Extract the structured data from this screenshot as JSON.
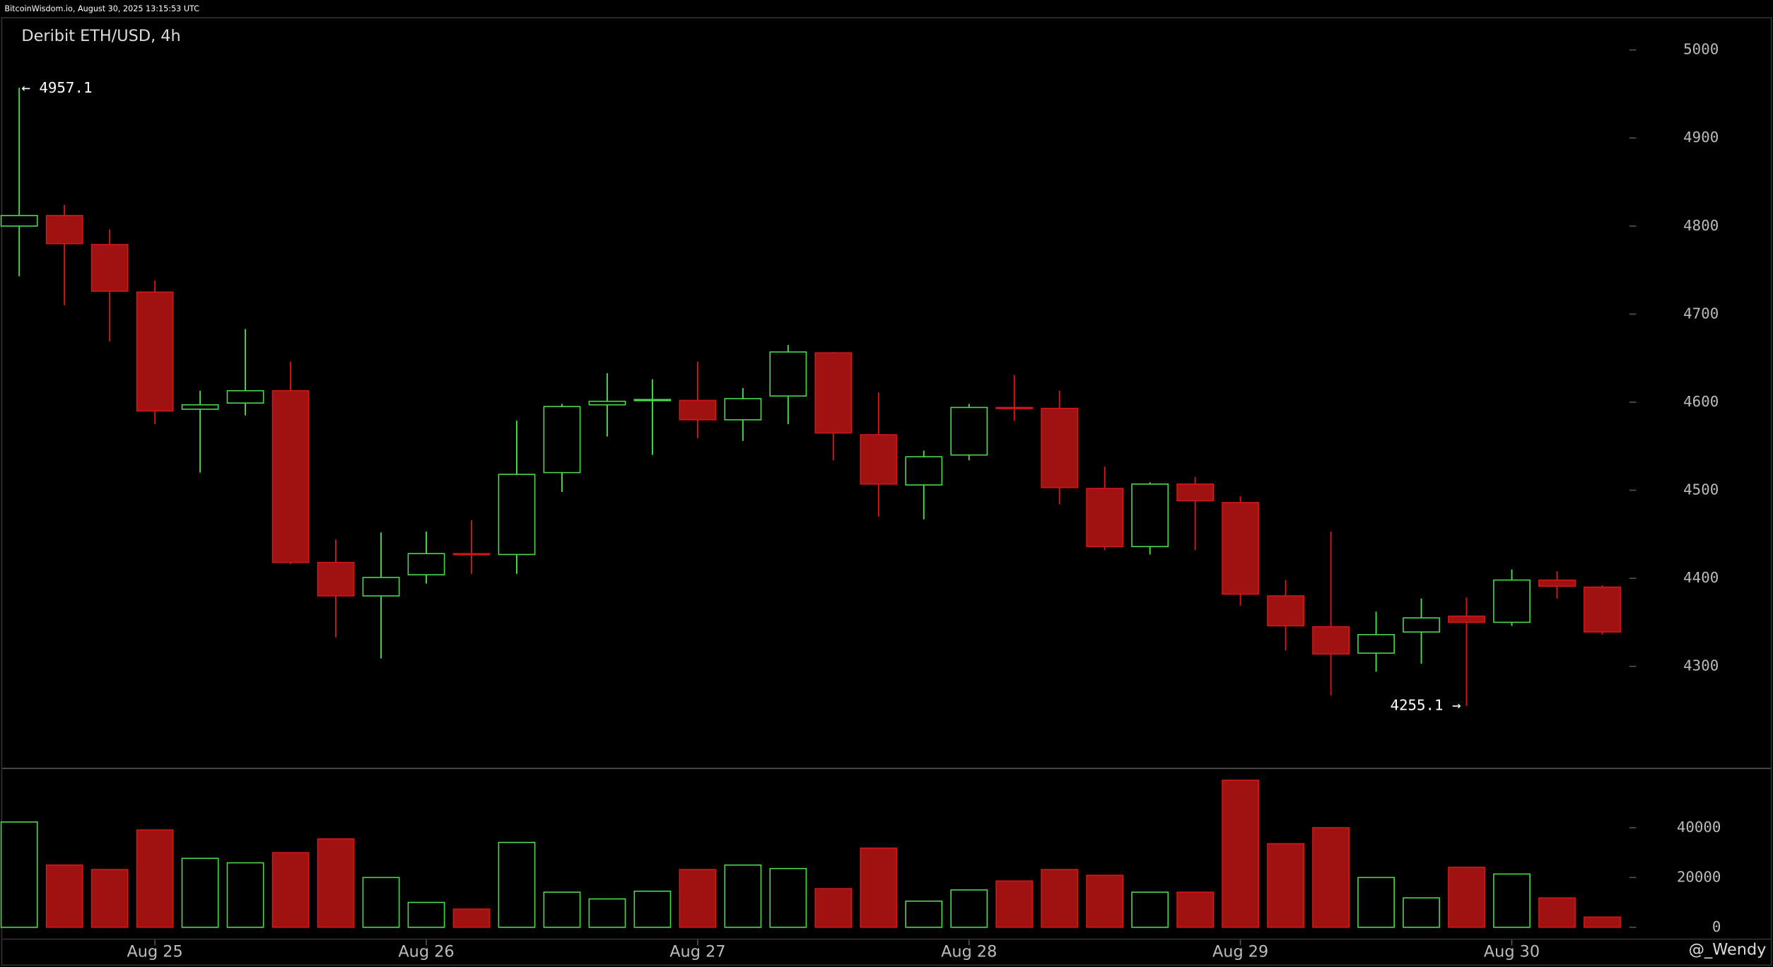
{
  "header": {
    "source": "BitcoinWisdom.io, August 30, 2025 13:15:53 UTC"
  },
  "watermark": "@_Wendy",
  "chart_data": {
    "type": "candlestick",
    "title": "Deribit ETH/USD, 4h",
    "categories": [
      null,
      null,
      null,
      "Aug 25",
      null,
      null,
      null,
      null,
      null,
      "Aug 26",
      null,
      null,
      null,
      null,
      null,
      "Aug 27",
      null,
      null,
      null,
      null,
      null,
      "Aug 28",
      null,
      null,
      null,
      null,
      null,
      "Aug 29",
      null,
      null,
      null,
      null,
      null,
      "Aug 30",
      null,
      null
    ],
    "open": [
      4800,
      4812,
      4779,
      4725,
      4592,
      4599,
      4613,
      4418,
      4380,
      4404,
      4428,
      4427,
      4520,
      4597,
      4602,
      4602,
      4580,
      4607,
      4656,
      4563,
      4506,
      4540,
      4594,
      4593,
      4502,
      4436,
      4507,
      4486,
      4380,
      4345,
      4315,
      4339,
      4357,
      4350,
      4398,
      4390
    ],
    "high": [
      4957.1,
      4824,
      4796,
      4738,
      4613,
      4683,
      4646,
      4444,
      4452,
      4453,
      4466,
      4579,
      4598,
      4633,
      4626,
      4646,
      4616,
      4665,
      4657,
      4611,
      4545,
      4598,
      4631,
      4613,
      4527,
      4509,
      4515,
      4493,
      4398,
      4453,
      4362,
      4377,
      4378,
      4410,
      4408,
      4392
    ],
    "low": [
      4743,
      4710,
      4669,
      4575,
      4520,
      4585,
      4416,
      4333,
      4309,
      4394,
      4405,
      4405,
      4498,
      4561,
      4540,
      4559,
      4556,
      4575,
      4534,
      4470,
      4467,
      4534,
      4579,
      4484,
      4432,
      4427,
      4432,
      4369,
      4318,
      4267,
      4294,
      4303,
      4255.1,
      4346,
      4377,
      4336
    ],
    "close": [
      4812,
      4780,
      4726,
      4590,
      4597,
      4613,
      4418,
      4380,
      4401,
      4428,
      4427,
      4518,
      4595,
      4601,
      4603,
      4580,
      4604,
      4657,
      4565,
      4507,
      4538,
      4594,
      4593,
      4503,
      4436,
      4507,
      4488,
      4382,
      4346,
      4314,
      4336,
      4355,
      4350,
      4398,
      4391,
      4339
    ],
    "volume": [
      42300,
      25000,
      23200,
      39100,
      27700,
      25900,
      30000,
      35500,
      20000,
      10000,
      7300,
      34100,
      14100,
      11400,
      14500,
      23200,
      25000,
      23600,
      15500,
      31800,
      10500,
      15000,
      18600,
      23200,
      20900,
      14100,
      14100,
      59100,
      33600,
      40000,
      20000,
      11800,
      24100,
      21400,
      11800,
      4100
    ],
    "up_color": "#4cd84c",
    "down_color": "#a01212",
    "ylim": [
      4186,
      5036
    ],
    "yticks": [
      4300,
      4400,
      4500,
      4600,
      4700,
      4800,
      4900,
      5000
    ],
    "volume_ylim": [
      -4545,
      63600
    ],
    "volume_ticks": [
      0,
      20000,
      40000
    ],
    "annotations": [
      "← 4957.1",
      "4255.1 →"
    ]
  }
}
